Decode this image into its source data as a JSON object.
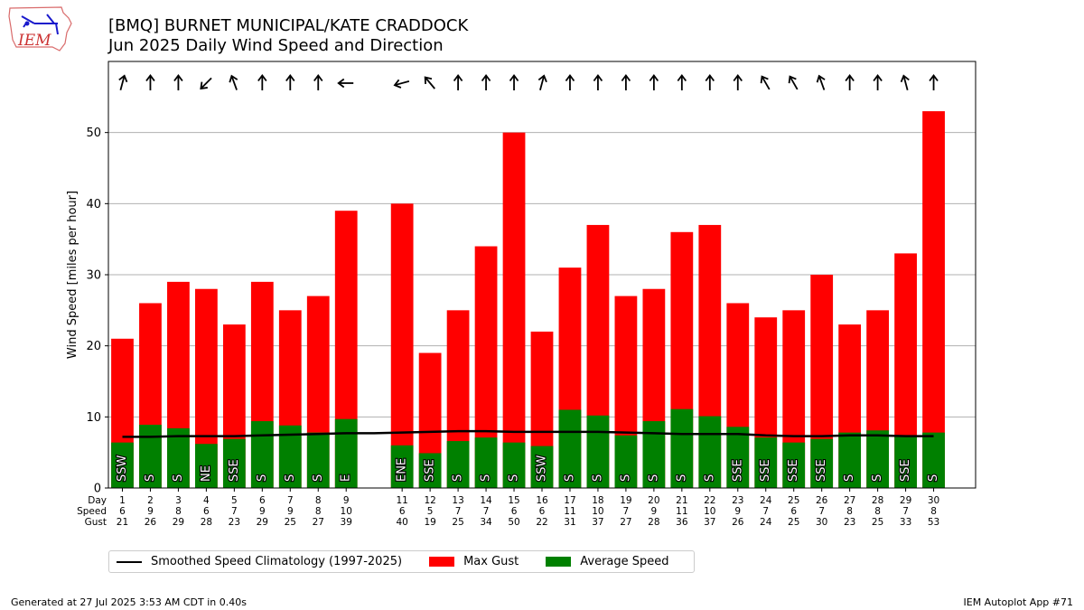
{
  "header": {
    "title": "[BMQ] BURNET MUNICIPAL/KATE CRADDOCK",
    "subtitle": "Jun 2025 Daily Wind Speed and Direction",
    "logo_text": "IEM"
  },
  "footer": {
    "generated": "Generated at 27 Jul 2025 3:53 AM CDT in 0.40s",
    "app": "IEM Autoplot App #71"
  },
  "legend": {
    "climatology": "Smoothed Speed Climatology (1997-2025)",
    "gust": "Max Gust",
    "average": "Average Speed"
  },
  "colors": {
    "gust": "#ff0000",
    "average": "#008000",
    "climatology": "#000000",
    "grid": "#b0b0b0"
  },
  "chart_data": {
    "type": "bar",
    "title": "[BMQ] BURNET MUNICIPAL/KATE CRADDOCK",
    "subtitle": "Jun 2025 Daily Wind Speed and Direction",
    "ylabel": "Wind Speed [miles per hour]",
    "ylim": [
      0,
      60
    ],
    "yticks": [
      0,
      10,
      20,
      30,
      40,
      50
    ],
    "xlim": [
      0.5,
      31.5
    ],
    "grid": "y",
    "row_labels": [
      "Day",
      "Speed",
      "Gust"
    ],
    "days": [
      1,
      2,
      3,
      4,
      5,
      6,
      7,
      8,
      9,
      11,
      12,
      13,
      14,
      15,
      16,
      17,
      18,
      19,
      20,
      21,
      22,
      23,
      24,
      25,
      26,
      27,
      28,
      29,
      30
    ],
    "avg_speed": [
      6.4,
      8.9,
      8.4,
      6.2,
      6.9,
      9.4,
      8.8,
      7.8,
      9.7,
      6.0,
      4.9,
      6.6,
      7.1,
      6.4,
      5.9,
      11.0,
      10.2,
      7.4,
      9.4,
      11.1,
      10.1,
      8.6,
      7.1,
      6.4,
      6.9,
      7.8,
      8.1,
      7.4,
      7.8
    ],
    "speed_label": [
      6,
      9,
      8,
      6,
      7,
      9,
      9,
      8,
      10,
      6,
      5,
      7,
      7,
      6,
      6,
      11,
      10,
      7,
      9,
      11,
      10,
      9,
      7,
      6,
      7,
      8,
      8,
      7,
      8
    ],
    "max_gust": [
      21,
      26,
      29,
      28,
      23,
      29,
      25,
      27,
      39,
      40,
      19,
      25,
      34,
      50,
      22,
      31,
      37,
      27,
      28,
      36,
      37,
      26,
      24,
      25,
      30,
      23,
      25,
      33,
      53
    ],
    "direction": [
      "SSW",
      "S",
      "S",
      "NE",
      "SSE",
      "S",
      "S",
      "S",
      "E",
      "ENE",
      "SSE",
      "S",
      "S",
      "S",
      "SSW",
      "S",
      "S",
      "S",
      "S",
      "S",
      "S",
      "SSE",
      "SSE",
      "SSE",
      "SSE",
      "S",
      "S",
      "SSE",
      "S"
    ],
    "arrow_angle_deg": [
      15,
      0,
      0,
      225,
      340,
      0,
      0,
      0,
      270,
      255,
      320,
      0,
      0,
      0,
      15,
      0,
      0,
      0,
      0,
      0,
      0,
      0,
      330,
      330,
      340,
      0,
      0,
      345,
      0
    ],
    "climatology": {
      "name": "Smoothed Speed Climatology (1997-2025)",
      "x": [
        1,
        2,
        3,
        4,
        5,
        6,
        7,
        8,
        9,
        10,
        11,
        12,
        13,
        14,
        15,
        16,
        17,
        18,
        19,
        20,
        21,
        22,
        23,
        24,
        25,
        26,
        27,
        28,
        29,
        30
      ],
      "y": [
        7.2,
        7.2,
        7.3,
        7.3,
        7.3,
        7.4,
        7.5,
        7.6,
        7.7,
        7.7,
        7.8,
        7.9,
        8.0,
        8.0,
        7.9,
        7.9,
        7.9,
        7.9,
        7.8,
        7.7,
        7.6,
        7.6,
        7.6,
        7.4,
        7.3,
        7.3,
        7.4,
        7.4,
        7.3,
        7.3
      ]
    }
  }
}
